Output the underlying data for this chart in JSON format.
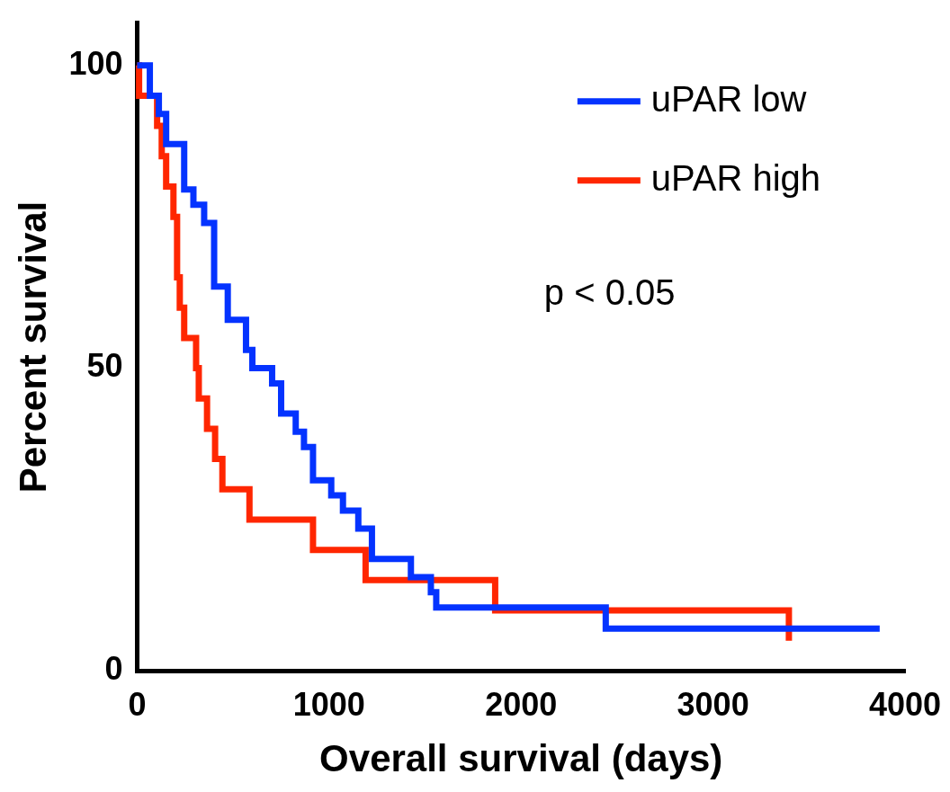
{
  "chart_data": {
    "type": "step",
    "xlabel": "Overall survival (days)",
    "ylabel": "Percent survival",
    "xlim": [
      0,
      4000
    ],
    "xticks": [
      0,
      1000,
      2000,
      3000,
      4000
    ],
    "ylim": [
      0,
      107
    ],
    "yticks": [
      0,
      50,
      100
    ],
    "grid": false,
    "legend": "top right",
    "marker": "none",
    "line_style": "solid",
    "annotations": [
      "p < 0.05"
    ],
    "series": [
      {
        "name": "uPAR low",
        "color": "#0433ff",
        "x": [
          0,
          66,
          113,
          151,
          245,
          293,
          349,
          401,
          472,
          567,
          600,
          703,
          750,
          826,
          869,
          916,
          1011,
          1072,
          1152,
          1223,
          1426,
          1530,
          1558,
          2441,
          3868
        ],
        "values": [
          100,
          95,
          92,
          87,
          79.5,
          77,
          74,
          63.5,
          58,
          53,
          50,
          47.5,
          42.5,
          39.5,
          37,
          31.5,
          29,
          26.5,
          23.5,
          18.5,
          15.5,
          13,
          10.5,
          7,
          7
        ]
      },
      {
        "name": "uPAR high",
        "color": "#ff2600",
        "x": [
          0,
          10,
          104,
          128,
          151,
          189,
          208,
          222,
          245,
          307,
          321,
          364,
          406,
          444,
          585,
          916,
          1190,
          1865,
          3395
        ],
        "values": [
          100,
          95,
          90,
          85,
          80,
          75,
          65,
          60,
          55,
          50,
          45,
          40,
          35,
          30,
          25,
          20,
          15,
          10,
          5
        ]
      }
    ]
  }
}
